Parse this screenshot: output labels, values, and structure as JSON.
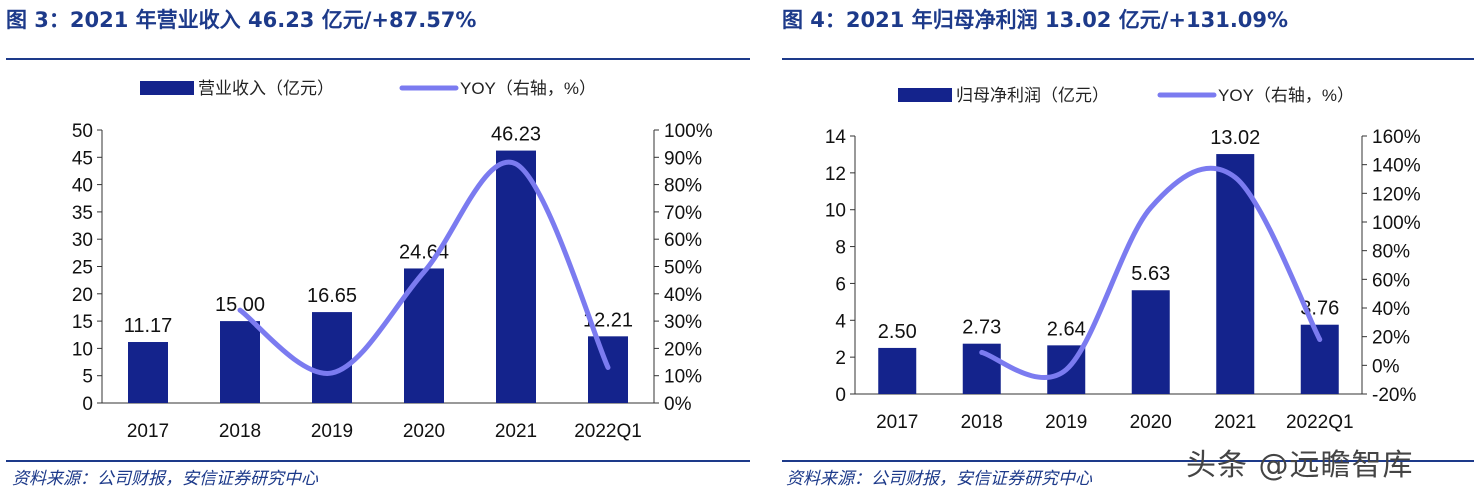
{
  "left": {
    "title": "图 3：2021 年营业收入 46.23 亿元/+87.57%",
    "source": "资料来源：公司财报，安信证券研究中心"
  },
  "right": {
    "title": "图 4：2021 年归母净利润 13.02 亿元/+131.09%",
    "source": "资料来源：公司财报，安信证券研究中心"
  },
  "watermark": "头条 @远瞻智库",
  "colors": {
    "bar": "#14238c",
    "line": "#7b7bf0",
    "title": "#1d3a8a"
  },
  "chart_data": [
    {
      "type": "bar+line",
      "categories": [
        "2017",
        "2018",
        "2019",
        "2020",
        "2021",
        "2022Q1"
      ],
      "series": [
        {
          "name": "营业收入（亿元）",
          "type": "bar",
          "axis": "left",
          "values": [
            11.17,
            15.0,
            16.65,
            24.64,
            46.23,
            12.21
          ],
          "labels": [
            "11.17",
            "15.00",
            "16.65",
            "24.64",
            "46.23",
            "12.21"
          ]
        },
        {
          "name": "YOY（右轴，%）",
          "type": "line",
          "axis": "right",
          "values": [
            null,
            34,
            11,
            48,
            87.57,
            13
          ]
        }
      ],
      "ylim": [
        0,
        50
      ],
      "yticks": [
        0,
        5,
        10,
        15,
        20,
        25,
        30,
        35,
        40,
        45,
        50
      ],
      "y2lim": [
        0,
        100
      ],
      "y2ticks": [
        0,
        10,
        20,
        30,
        40,
        50,
        60,
        70,
        80,
        90,
        100
      ],
      "y2ticklabels": [
        "0%",
        "10%",
        "20%",
        "30%",
        "40%",
        "50%",
        "60%",
        "70%",
        "80%",
        "90%",
        "100%"
      ],
      "legend": "top"
    },
    {
      "type": "bar+line",
      "categories": [
        "2017",
        "2018",
        "2019",
        "2020",
        "2021",
        "2022Q1"
      ],
      "series": [
        {
          "name": "归母净利润（亿元）",
          "type": "bar",
          "axis": "left",
          "values": [
            2.5,
            2.73,
            2.64,
            5.63,
            13.02,
            3.76
          ],
          "labels": [
            "2.50",
            "2.73",
            "2.64",
            "5.63",
            "13.02",
            "3.76"
          ]
        },
        {
          "name": "YOY（右轴，%）",
          "type": "line",
          "axis": "right",
          "values": [
            null,
            9,
            -3,
            110,
            131.09,
            18
          ]
        }
      ],
      "ylim": [
        0,
        14
      ],
      "yticks": [
        0,
        2,
        4,
        6,
        8,
        10,
        12,
        14
      ],
      "y2lim": [
        -20,
        160
      ],
      "y2ticks": [
        -20,
        0,
        20,
        40,
        60,
        80,
        100,
        120,
        140,
        160
      ],
      "y2ticklabels": [
        "-20%",
        "0%",
        "20%",
        "40%",
        "60%",
        "80%",
        "100%",
        "120%",
        "140%",
        "160%"
      ],
      "legend": "top"
    }
  ]
}
